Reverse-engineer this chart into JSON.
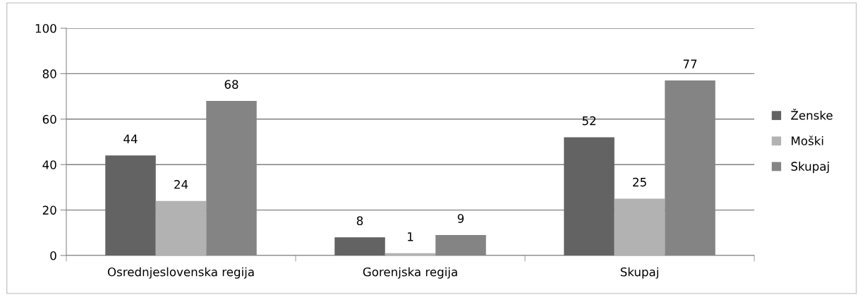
{
  "chart_data": {
    "type": "bar",
    "categories": [
      "Osrednjeslovenska regija",
      "Gorenjska regija",
      "Skupaj"
    ],
    "series": [
      {
        "name": "Ženske",
        "color": "#636363",
        "values": [
          44,
          8,
          52
        ]
      },
      {
        "name": "Moški",
        "color": "#b2b2b2",
        "values": [
          24,
          1,
          25
        ]
      },
      {
        "name": "Skupaj",
        "color": "#848484",
        "values": [
          68,
          9,
          77
        ]
      }
    ],
    "ylim": [
      0,
      100
    ],
    "yticks": [
      0,
      20,
      40,
      60,
      80,
      100
    ],
    "grid": "y",
    "legend": "right",
    "data_labels": true
  }
}
